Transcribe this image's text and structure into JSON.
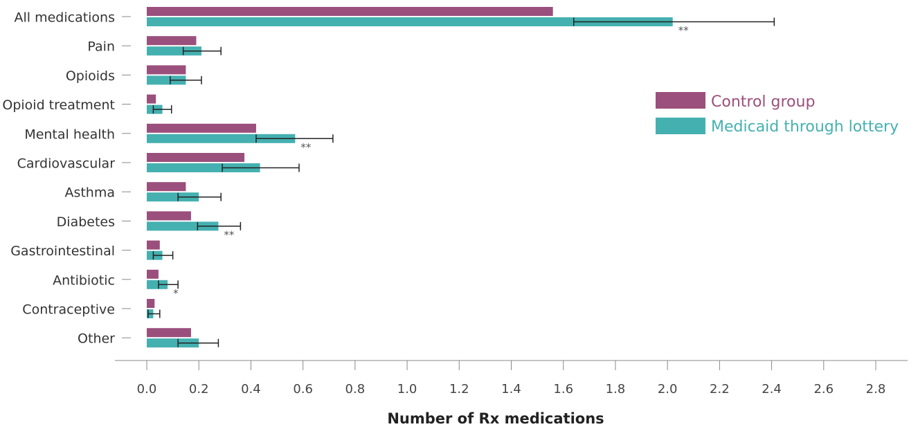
{
  "chart_data": {
    "type": "bar",
    "orientation": "horizontal",
    "xlabel": "Number of Rx medications",
    "xlim": [
      0,
      2.8
    ],
    "xticks": [
      0.0,
      0.2,
      0.4,
      0.6,
      0.8,
      1.0,
      1.2,
      1.4,
      1.6,
      1.8,
      2.0,
      2.2,
      2.4,
      2.6,
      2.8
    ],
    "xtick_labels": [
      "0.0",
      "0.2",
      "0.4",
      "0.6",
      "0.8",
      "1.0",
      "1.2",
      "1.4",
      "1.6",
      "1.8",
      "2.0",
      "2.2",
      "2.4",
      "2.6",
      "2.8"
    ],
    "grid": false,
    "legend_position": "right",
    "categories": [
      "All medications",
      "Pain",
      "Opioids",
      "Opioid treatment",
      "Mental health",
      "Cardiovascular",
      "Asthma",
      "Diabetes",
      "Gastrointestinal",
      "Antibiotic",
      "Contraceptive",
      "Other"
    ],
    "series": [
      {
        "name": "Control group",
        "color": "#9a4f7c",
        "values": [
          1.56,
          0.19,
          0.15,
          0.035,
          0.42,
          0.375,
          0.15,
          0.17,
          0.05,
          0.045,
          0.03,
          0.17
        ]
      },
      {
        "name": "Medicaid through lottery",
        "color": "#45b0b0",
        "values": [
          2.02,
          0.21,
          0.15,
          0.06,
          0.57,
          0.435,
          0.2,
          0.275,
          0.06,
          0.08,
          0.025,
          0.2
        ],
        "error_low": [
          1.64,
          0.14,
          0.09,
          0.025,
          0.42,
          0.29,
          0.12,
          0.195,
          0.025,
          0.045,
          0.005,
          0.12
        ],
        "error_high": [
          2.41,
          0.285,
          0.21,
          0.095,
          0.715,
          0.585,
          0.285,
          0.36,
          0.1,
          0.12,
          0.05,
          0.275
        ],
        "significance": [
          "**",
          "",
          "",
          "",
          "**",
          "",
          "",
          "**",
          "",
          "*",
          "",
          ""
        ]
      }
    ]
  }
}
